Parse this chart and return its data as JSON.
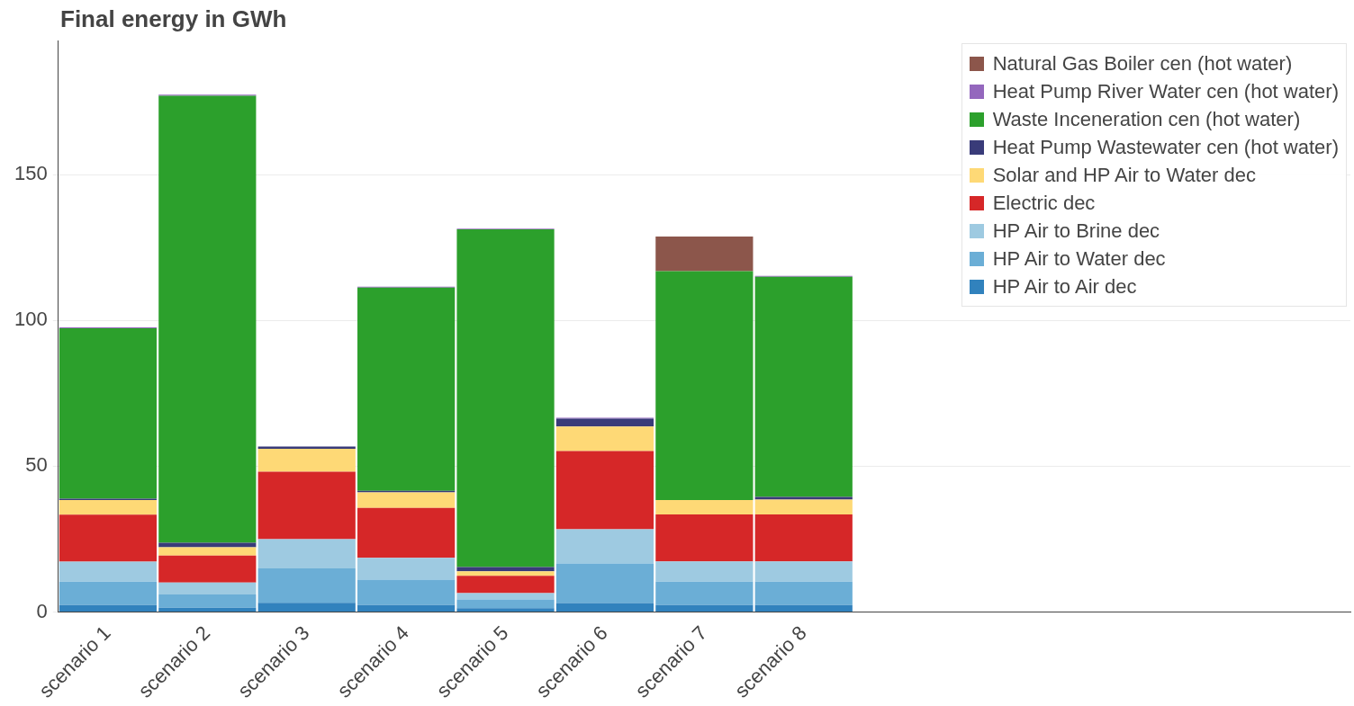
{
  "chart_data": {
    "type": "bar",
    "title": "Final energy in GWh",
    "stacked": true,
    "categories": [
      "scenario 1",
      "scenario 2",
      "scenario 3",
      "scenario 4",
      "scenario 5",
      "scenario 6",
      "scenario 7",
      "scenario 8",
      null,
      null,
      null,
      null,
      null
    ],
    "series": [
      {
        "name": "HP Air to Air dec",
        "color": "#3182bd",
        "values": [
          2.4,
          1.5,
          3.2,
          2.4,
          1.3,
          3.1,
          2.4,
          2.4,
          null,
          null,
          null,
          null,
          null
        ]
      },
      {
        "name": "HP Air to Water dec",
        "color": "#6baed6",
        "values": [
          8.0,
          4.5,
          11.8,
          8.7,
          3.0,
          13.6,
          8.0,
          8.0,
          null,
          null,
          null,
          null,
          null
        ]
      },
      {
        "name": "HP Air to Brine dec",
        "color": "#9ecae1",
        "values": [
          6.9,
          4.1,
          10.0,
          7.5,
          2.2,
          11.7,
          7.0,
          7.0,
          null,
          null,
          null,
          null,
          null
        ]
      },
      {
        "name": "Electric dec",
        "color": "#d62728",
        "values": [
          16.1,
          9.3,
          23.1,
          17.1,
          5.9,
          26.8,
          16.1,
          16.1,
          null,
          null,
          null,
          null,
          null
        ]
      },
      {
        "name": "Solar and HP Air to Water dec",
        "color": "#fed976",
        "values": [
          5.0,
          2.8,
          7.9,
          5.3,
          1.6,
          8.4,
          4.9,
          5.1,
          null,
          null,
          null,
          null,
          null
        ]
      },
      {
        "name": "Heat Pump Wastewater cen (hot water)",
        "color": "#393b79",
        "values": [
          0.5,
          1.6,
          0.8,
          0.6,
          1.4,
          2.7,
          0,
          0.9,
          null,
          null,
          null,
          null,
          null
        ]
      },
      {
        "name": "Waste Inceneration cen (hot water)",
        "color": "#2ca02c",
        "values": [
          58.4,
          153.2,
          0,
          69.7,
          115.8,
          0,
          78.5,
          75.5,
          null,
          null,
          null,
          null,
          null
        ]
      },
      {
        "name": "Heat Pump River Water cen (hot water)",
        "color": "#9467bd",
        "values": [
          0.3,
          0.4,
          null,
          0.3,
          0.3,
          0.3,
          0,
          0.3,
          null,
          null,
          null,
          null,
          null
        ]
      },
      {
        "name": "Natural Gas Boiler cen (hot water)",
        "color": "#8c564b",
        "values": [
          0,
          0,
          0,
          0,
          0,
          0,
          11.9,
          0,
          null,
          null,
          null,
          null,
          null
        ]
      }
    ],
    "ylim": [
      0,
      196
    ],
    "yticks": [
      0,
      50,
      100,
      150
    ],
    "grid": "y",
    "legend": "top right"
  }
}
